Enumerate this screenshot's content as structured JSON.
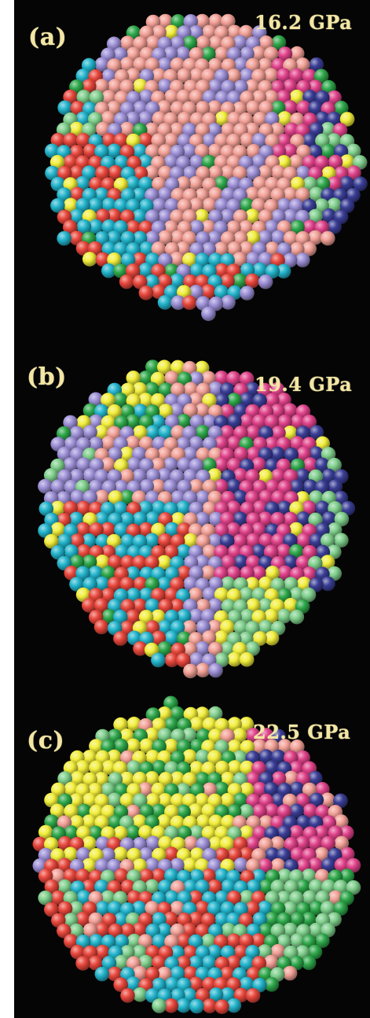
{
  "panels": [
    {
      "label": "(a)",
      "pressure": "16.2 GPa"
    },
    {
      "label": "(b)",
      "pressure": "19.4 GPa"
    },
    {
      "label": "(c)",
      "pressure": "22.5 GPa"
    }
  ],
  "colors": {
    "background": "#050505",
    "label_text": "#f3e6a4",
    "atom_pink": "#f2a096",
    "atom_lavender": "#9c8fd6",
    "atom_magenta": "#e0428a",
    "atom_navy": "#3a3e96",
    "atom_red": "#e8473c",
    "atom_cyan": "#22b4cc",
    "atom_green": "#2ea84a",
    "atom_light_green": "#7fcf8c",
    "atom_yellow": "#f2ee3c"
  }
}
